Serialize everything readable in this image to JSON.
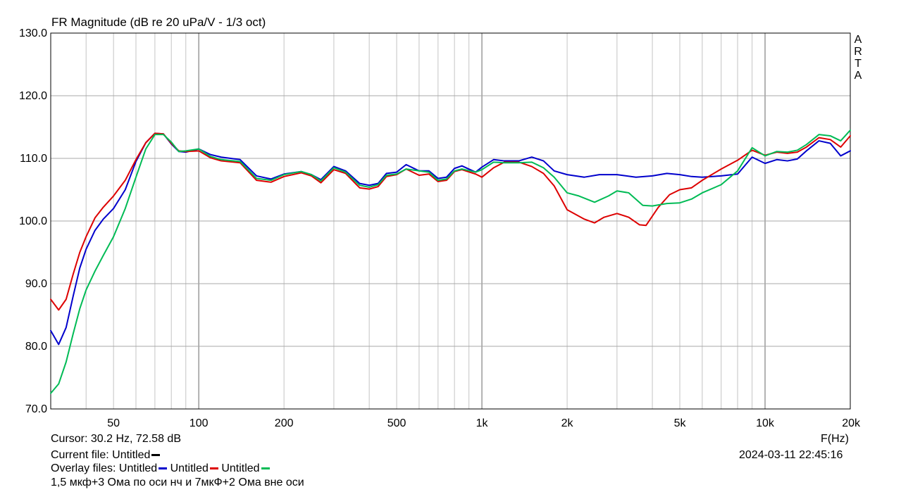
{
  "chart_data": {
    "type": "line",
    "title": "FR Magnitude (dB re 20 uPa/V - 1/3 oct)",
    "brand": [
      "A",
      "R",
      "T",
      "A"
    ],
    "xlabel": "F(Hz)",
    "ylabel": "",
    "xscale": "log",
    "xlim": [
      30,
      20000
    ],
    "ylim": [
      70,
      130
    ],
    "grid": true,
    "x_ticks": [
      {
        "value": 50,
        "label": "50"
      },
      {
        "value": 100,
        "label": "100"
      },
      {
        "value": 200,
        "label": "200"
      },
      {
        "value": 500,
        "label": "500"
      },
      {
        "value": 1000,
        "label": "1k"
      },
      {
        "value": 2000,
        "label": "2k"
      },
      {
        "value": 5000,
        "label": "5k"
      },
      {
        "value": 10000,
        "label": "10k"
      },
      {
        "value": 20000,
        "label": "20k"
      }
    ],
    "y_ticks": [
      {
        "value": 70,
        "label": "70.0"
      },
      {
        "value": 80,
        "label": "80.0"
      },
      {
        "value": 90,
        "label": "90.0"
      },
      {
        "value": 100,
        "label": "100.0"
      },
      {
        "value": 110,
        "label": "110.0"
      },
      {
        "value": 120,
        "label": "120.0"
      },
      {
        "value": 130,
        "label": "130.0"
      }
    ],
    "series": [
      {
        "name": "Untitled",
        "color": "#0000cc",
        "points": [
          [
            30,
            82.5
          ],
          [
            32,
            80.3
          ],
          [
            34,
            83
          ],
          [
            36,
            88
          ],
          [
            38,
            92.5
          ],
          [
            40,
            95.5
          ],
          [
            43,
            98.5
          ],
          [
            46,
            100.3
          ],
          [
            50,
            102
          ],
          [
            55,
            105
          ],
          [
            60,
            109.5
          ],
          [
            65,
            112.5
          ],
          [
            70,
            114
          ],
          [
            75,
            113.9
          ],
          [
            80,
            112.3
          ],
          [
            85,
            111.1
          ],
          [
            90,
            111
          ],
          [
            100,
            111.5
          ],
          [
            110,
            110.6
          ],
          [
            120,
            110.2
          ],
          [
            140,
            109.8
          ],
          [
            160,
            107.2
          ],
          [
            180,
            106.7
          ],
          [
            200,
            107.5
          ],
          [
            230,
            107.9
          ],
          [
            250,
            107.4
          ],
          [
            270,
            106.6
          ],
          [
            300,
            108.7
          ],
          [
            330,
            108
          ],
          [
            370,
            106
          ],
          [
            400,
            105.7
          ],
          [
            430,
            106
          ],
          [
            460,
            107.6
          ],
          [
            500,
            107.8
          ],
          [
            540,
            109
          ],
          [
            600,
            108
          ],
          [
            650,
            108
          ],
          [
            700,
            106.8
          ],
          [
            750,
            107
          ],
          [
            800,
            108.4
          ],
          [
            850,
            108.8
          ],
          [
            950,
            107.8
          ],
          [
            1000,
            108.6
          ],
          [
            1100,
            109.8
          ],
          [
            1200,
            109.6
          ],
          [
            1350,
            109.6
          ],
          [
            1500,
            110.2
          ],
          [
            1650,
            109.6
          ],
          [
            1800,
            108
          ],
          [
            2000,
            107.4
          ],
          [
            2300,
            107
          ],
          [
            2600,
            107.4
          ],
          [
            3000,
            107.4
          ],
          [
            3500,
            107
          ],
          [
            4000,
            107.2
          ],
          [
            4500,
            107.6
          ],
          [
            5000,
            107.4
          ],
          [
            5500,
            107.1
          ],
          [
            6000,
            107
          ],
          [
            7000,
            107.2
          ],
          [
            8000,
            107.5
          ],
          [
            9000,
            110.2
          ],
          [
            10000,
            109.2
          ],
          [
            11000,
            109.8
          ],
          [
            12000,
            109.6
          ],
          [
            13000,
            109.9
          ],
          [
            14000,
            111.2
          ],
          [
            15500,
            112.8
          ],
          [
            17000,
            112.4
          ],
          [
            18500,
            110.4
          ],
          [
            20000,
            111.2
          ]
        ]
      },
      {
        "name": "Untitled",
        "color": "#dd0000",
        "points": [
          [
            30,
            87.5
          ],
          [
            32,
            85.8
          ],
          [
            34,
            87.5
          ],
          [
            36,
            91.5
          ],
          [
            38,
            95
          ],
          [
            40,
            97.5
          ],
          [
            43,
            100.5
          ],
          [
            46,
            102.2
          ],
          [
            50,
            104
          ],
          [
            55,
            106.5
          ],
          [
            60,
            109.8
          ],
          [
            65,
            112.5
          ],
          [
            70,
            114
          ],
          [
            75,
            113.9
          ],
          [
            80,
            112.4
          ],
          [
            85,
            111.2
          ],
          [
            90,
            111.1
          ],
          [
            100,
            111.2
          ],
          [
            110,
            110.1
          ],
          [
            120,
            109.6
          ],
          [
            140,
            109.3
          ],
          [
            160,
            106.5
          ],
          [
            180,
            106.2
          ],
          [
            200,
            107.1
          ],
          [
            230,
            107.7
          ],
          [
            250,
            107.2
          ],
          [
            270,
            106.1
          ],
          [
            300,
            108.2
          ],
          [
            330,
            107.6
          ],
          [
            370,
            105.3
          ],
          [
            400,
            105.1
          ],
          [
            430,
            105.5
          ],
          [
            460,
            107.1
          ],
          [
            500,
            107.4
          ],
          [
            540,
            108.3
          ],
          [
            600,
            107.3
          ],
          [
            650,
            107.5
          ],
          [
            700,
            106.3
          ],
          [
            750,
            106.5
          ],
          [
            800,
            107.9
          ],
          [
            850,
            108.2
          ],
          [
            950,
            107.5
          ],
          [
            1000,
            107
          ],
          [
            1100,
            108.5
          ],
          [
            1200,
            109.4
          ],
          [
            1350,
            109.4
          ],
          [
            1500,
            108.7
          ],
          [
            1650,
            107.6
          ],
          [
            1800,
            105.6
          ],
          [
            2000,
            101.8
          ],
          [
            2300,
            100.3
          ],
          [
            2500,
            99.7
          ],
          [
            2700,
            100.6
          ],
          [
            3000,
            101.2
          ],
          [
            3300,
            100.6
          ],
          [
            3600,
            99.4
          ],
          [
            3800,
            99.3
          ],
          [
            4200,
            102.2
          ],
          [
            4600,
            104.2
          ],
          [
            5000,
            105
          ],
          [
            5500,
            105.3
          ],
          [
            6000,
            106.5
          ],
          [
            7000,
            108.3
          ],
          [
            8000,
            109.7
          ],
          [
            9000,
            111.3
          ],
          [
            10000,
            110.5
          ],
          [
            11000,
            111
          ],
          [
            12000,
            110.8
          ],
          [
            13000,
            111
          ],
          [
            14000,
            111.8
          ],
          [
            15500,
            113.3
          ],
          [
            17000,
            113
          ],
          [
            18500,
            111.8
          ],
          [
            20000,
            113.6
          ]
        ]
      },
      {
        "name": "Untitled",
        "color": "#00bb55",
        "points": [
          [
            30,
            72.5
          ],
          [
            32,
            74
          ],
          [
            34,
            77.5
          ],
          [
            36,
            82
          ],
          [
            38,
            86
          ],
          [
            40,
            89
          ],
          [
            43,
            92
          ],
          [
            46,
            94.5
          ],
          [
            50,
            97.5
          ],
          [
            55,
            102
          ],
          [
            60,
            107
          ],
          [
            65,
            111.5
          ],
          [
            70,
            113.8
          ],
          [
            75,
            113.8
          ],
          [
            80,
            112.6
          ],
          [
            85,
            111.1
          ],
          [
            90,
            111.2
          ],
          [
            100,
            111.5
          ],
          [
            110,
            110.3
          ],
          [
            120,
            109.8
          ],
          [
            140,
            109.5
          ],
          [
            160,
            106.8
          ],
          [
            180,
            106.5
          ],
          [
            200,
            107.4
          ],
          [
            230,
            107.9
          ],
          [
            250,
            107.4
          ],
          [
            270,
            106.4
          ],
          [
            300,
            108.5
          ],
          [
            330,
            107.8
          ],
          [
            370,
            105.7
          ],
          [
            400,
            105.4
          ],
          [
            430,
            105.8
          ],
          [
            460,
            107.3
          ],
          [
            500,
            107.5
          ],
          [
            540,
            108.3
          ],
          [
            600,
            108
          ],
          [
            650,
            107.8
          ],
          [
            700,
            106.5
          ],
          [
            750,
            106.7
          ],
          [
            800,
            108
          ],
          [
            850,
            108.3
          ],
          [
            950,
            107.8
          ],
          [
            1000,
            108.2
          ],
          [
            1100,
            109.4
          ],
          [
            1200,
            109.3
          ],
          [
            1350,
            109.3
          ],
          [
            1500,
            109.4
          ],
          [
            1650,
            108.5
          ],
          [
            1800,
            107
          ],
          [
            2000,
            104.5
          ],
          [
            2200,
            104
          ],
          [
            2500,
            103
          ],
          [
            2800,
            104
          ],
          [
            3000,
            104.8
          ],
          [
            3300,
            104.5
          ],
          [
            3700,
            102.5
          ],
          [
            4000,
            102.4
          ],
          [
            4500,
            102.8
          ],
          [
            5000,
            102.9
          ],
          [
            5500,
            103.5
          ],
          [
            6000,
            104.5
          ],
          [
            7000,
            105.8
          ],
          [
            8000,
            108
          ],
          [
            9000,
            111.7
          ],
          [
            10000,
            110.4
          ],
          [
            11000,
            111.1
          ],
          [
            12000,
            111
          ],
          [
            13000,
            111.3
          ],
          [
            14000,
            112.2
          ],
          [
            15500,
            113.8
          ],
          [
            17000,
            113.6
          ],
          [
            18500,
            112.8
          ],
          [
            20000,
            114.5
          ]
        ]
      }
    ]
  },
  "footer": {
    "cursor": "Cursor: 30.2 Hz, 72.58 dB",
    "current_file_label": "Current file: Untitled",
    "current_file_color": "#000000",
    "overlay_label": "Overlay files:",
    "overlay_items": [
      {
        "name": "Untitled",
        "color": "#0000cc"
      },
      {
        "name": "Untitled",
        "color": "#dd0000"
      },
      {
        "name": "Untitled",
        "color": "#00bb55"
      }
    ],
    "note": "1,5 мкф+3 Ома по оси нч и 7мкФ+2 Ома вне оси",
    "timestamp": "2024-03-11   22:45:16"
  }
}
